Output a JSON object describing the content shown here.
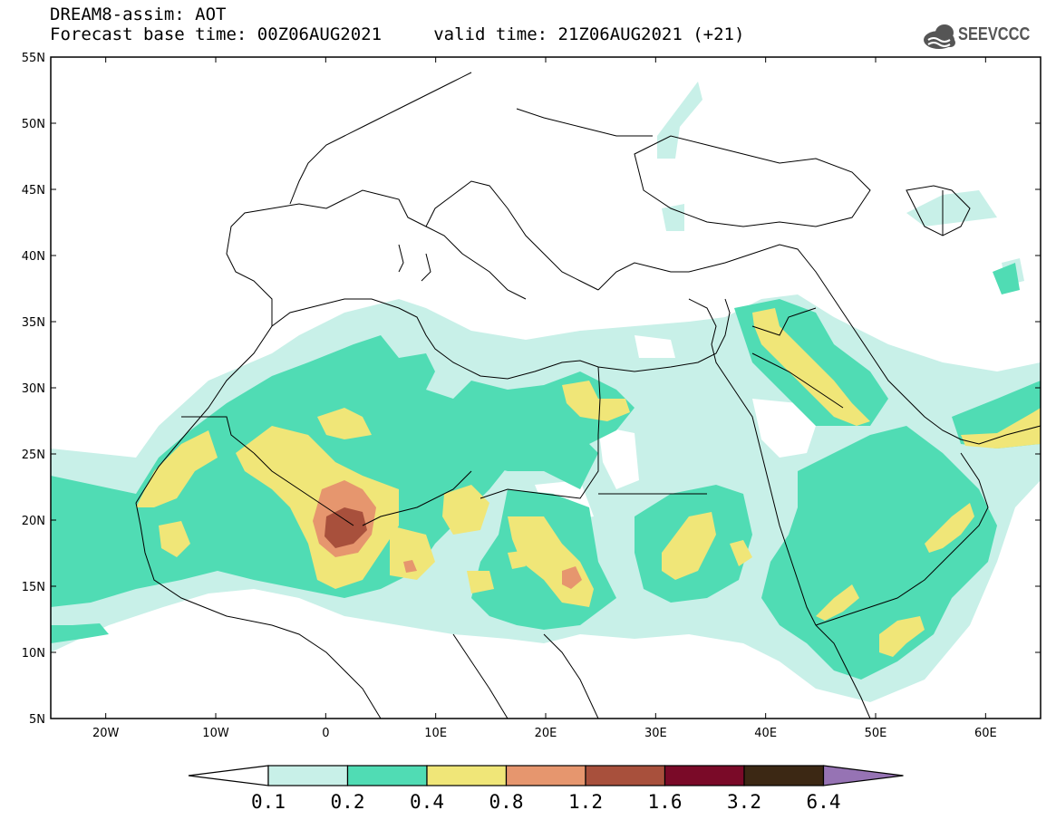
{
  "header": {
    "title": "DREAM8-assim: AOT",
    "subtitle": "Forecast base time: 00Z06AUG2021     valid time: 21Z06AUG2021 (+21)",
    "logo_text": "SEEVCCC"
  },
  "map": {
    "projection": "lat-lon",
    "lon_range": [
      -25,
      65
    ],
    "lat_range": [
      5,
      55
    ],
    "lat_ticks": [
      "55N",
      "50N",
      "45N",
      "40N",
      "35N",
      "30N",
      "25N",
      "20N",
      "15N",
      "10N",
      "5N"
    ],
    "lon_ticks": [
      "20W",
      "10W",
      "0",
      "10E",
      "20E",
      "30E",
      "40E",
      "50E",
      "60E"
    ],
    "land_outline_color": "#000000",
    "background_color": "#ffffff"
  },
  "colorbar": {
    "levels": [
      "0.1",
      "0.2",
      "0.4",
      "0.8",
      "1.2",
      "1.6",
      "3.2",
      "6.4"
    ],
    "colors": [
      "#ffffff",
      "#c8f0e8",
      "#50dcb4",
      "#f0e678",
      "#e6966e",
      "#a8503c",
      "#7a0a28",
      "#3c2814",
      "#9673b4"
    ]
  }
}
